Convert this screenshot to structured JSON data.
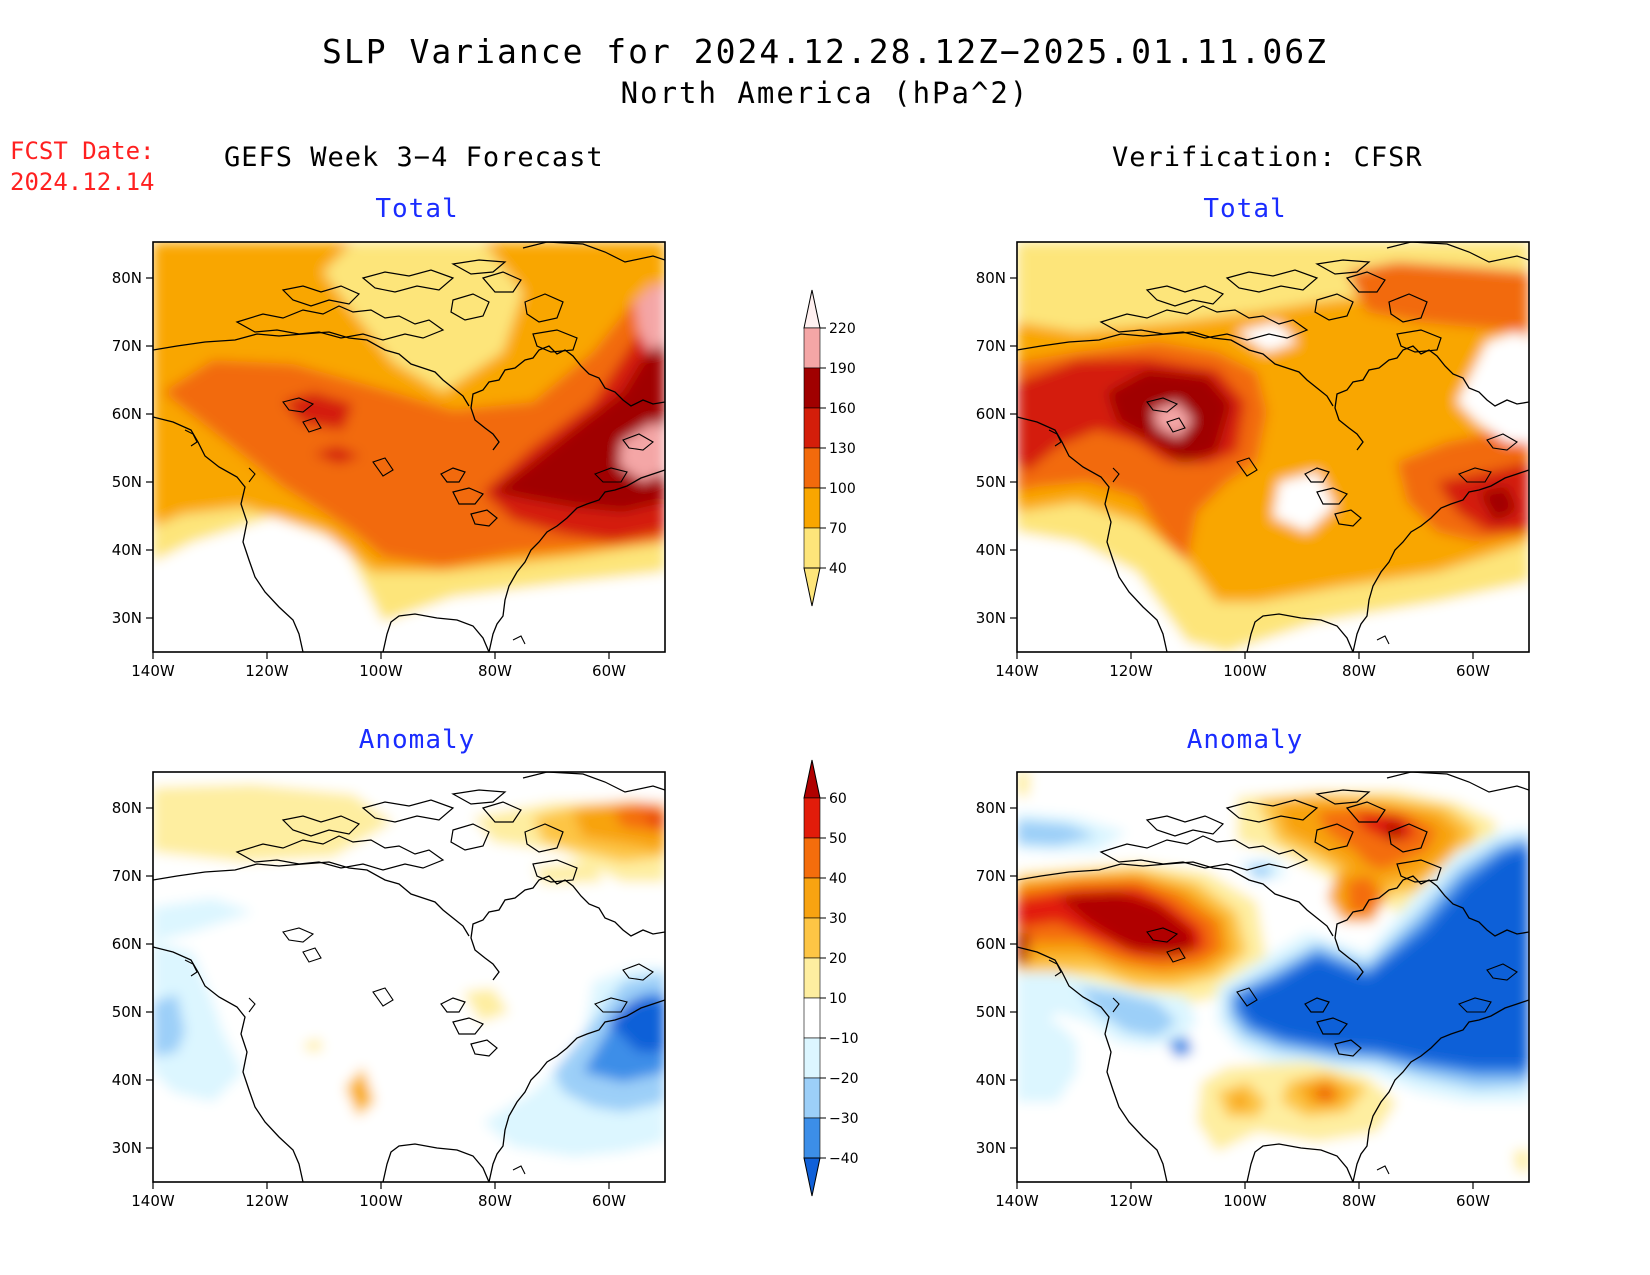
{
  "title": "SLP Variance for 2024.12.28.12Z−2025.01.11.06Z",
  "subtitle": "North America (hPa^2)",
  "fcst_date_label": "FCST Date:",
  "fcst_date": "2024.12.14",
  "left_column_title": "GEFS Week 3−4 Forecast",
  "right_column_title": "Verification: CFSR",
  "panel_titles": {
    "tl": "Total",
    "tr": "Total",
    "bl": "Anomaly",
    "br": "Anomaly"
  },
  "lat_labels": [
    "80N",
    "70N",
    "60N",
    "50N",
    "40N",
    "30N"
  ],
  "lon_labels": [
    "140W",
    "120W",
    "100W",
    "80W",
    "60W"
  ],
  "total_colorbar": {
    "labels": [
      "220",
      "190",
      "160",
      "130",
      "100",
      "70",
      "40"
    ],
    "colors": [
      "#fff0f0",
      "#f4a6a6",
      "#a00000",
      "#d41e0a",
      "#f26a0c",
      "#f9a600",
      "#fde57a"
    ]
  },
  "anomaly_colorbar": {
    "labels": [
      "60",
      "50",
      "40",
      "30",
      "20",
      "10",
      "−10",
      "−20",
      "−30",
      "−40"
    ],
    "colors": [
      "#b00000",
      "#e21c0a",
      "#f46d0c",
      "#f8a311",
      "#fdc545",
      "#feeea0",
      "#ffffff",
      "#dcf6ff",
      "#9ccff8",
      "#3c8ee8",
      "#1060d8"
    ]
  },
  "chart_data": [
    {
      "panel": "GEFS Week 3-4 Forecast Total",
      "type": "heatmap",
      "field": "SLP variance",
      "units": "hPa^2",
      "levels": [
        40,
        70,
        100,
        130,
        160,
        190,
        220
      ],
      "lat_range": [
        25,
        85
      ],
      "lon_range": [
        -140,
        -50
      ]
    },
    {
      "panel": "Verification CFSR Total",
      "type": "heatmap",
      "field": "SLP variance",
      "units": "hPa^2",
      "levels": [
        40,
        70,
        100,
        130,
        160,
        190,
        220
      ],
      "lat_range": [
        25,
        85
      ],
      "lon_range": [
        -140,
        -50
      ]
    },
    {
      "panel": "GEFS Week 3-4 Forecast Anomaly",
      "type": "heatmap",
      "field": "SLP variance anomaly",
      "units": "hPa^2",
      "levels": [
        -40,
        -30,
        -20,
        -10,
        10,
        20,
        30,
        40,
        50,
        60
      ],
      "lat_range": [
        25,
        85
      ],
      "lon_range": [
        -140,
        -50
      ]
    },
    {
      "panel": "Verification CFSR Anomaly",
      "type": "heatmap",
      "field": "SLP variance anomaly",
      "units": "hPa^2",
      "levels": [
        -40,
        -30,
        -20,
        -10,
        10,
        20,
        30,
        40,
        50,
        60
      ],
      "lat_range": [
        25,
        85
      ],
      "lon_range": [
        -140,
        -50
      ]
    }
  ]
}
